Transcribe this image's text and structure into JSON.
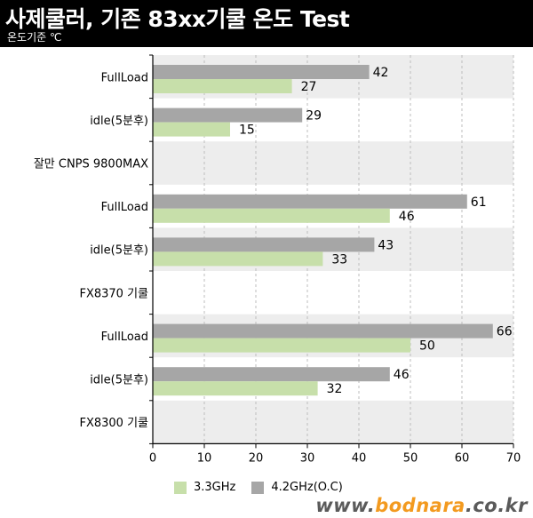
{
  "header": {
    "title": "사제쿨러, 기존 83xx기쿨  온도 Test",
    "subtitle": "온도기준 ℃"
  },
  "legend": {
    "series1": "3.3GHz",
    "series2": "4.2GHz(O.C)"
  },
  "watermark": {
    "prefix": "www.",
    "brand": "bodnara",
    "suffix": ".co.kr"
  },
  "colors": {
    "series1": "#c7dfaa",
    "series2": "#a6a6a6",
    "band": "#ededed",
    "grid": "#bdbdbd"
  },
  "chart_data": {
    "type": "bar",
    "orientation": "horizontal",
    "title": "사제쿨러, 기존 83xx기쿨  온도 Test",
    "subtitle": "온도기준 ℃",
    "xlim": [
      0,
      70
    ],
    "xticks": [
      0,
      10,
      20,
      30,
      40,
      50,
      60,
      70
    ],
    "grid": true,
    "legend_position": "bottom",
    "categories": [
      "FullLoad",
      "idle(5분후)",
      "잘만 CNPS 9800MAX",
      "FullLoad",
      "idle(5분후)",
      "FX8370 기쿨",
      "FullLoad",
      "idle(5분후)",
      "FX8300 기쿨"
    ],
    "series": [
      {
        "name": "3.3GHz",
        "values": [
          27,
          15,
          null,
          46,
          33,
          null,
          50,
          32,
          null
        ]
      },
      {
        "name": "4.2GHz(O.C)",
        "values": [
          42,
          29,
          null,
          61,
          43,
          null,
          66,
          46,
          null
        ]
      }
    ]
  }
}
